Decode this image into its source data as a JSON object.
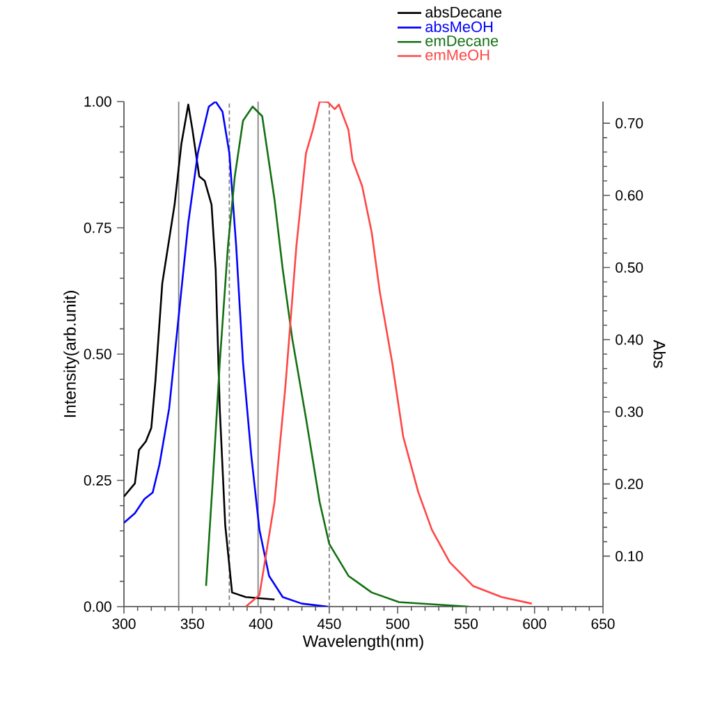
{
  "chart_data": {
    "type": "line",
    "xlabel": "Wavelength(nm)",
    "ylabel": "Intensity(arb.unit)",
    "y2label": "Abs",
    "xlim": [
      300,
      650
    ],
    "xticks": [
      300,
      350,
      400,
      450,
      500,
      550,
      600,
      650
    ],
    "ylim": [
      0,
      1.0
    ],
    "yticks": [
      {
        "value": 0,
        "label": "0.00"
      },
      {
        "value": 0.25,
        "label": "0.25"
      },
      {
        "value": 0.5,
        "label": "0.50"
      },
      {
        "value": 0.75,
        "label": "0.75"
      },
      {
        "value": 1.0,
        "label": "1.00"
      }
    ],
    "y2lim": [
      0.03,
      0.73
    ],
    "y2ticks": [
      {
        "value": 0.1,
        "label": "0.10"
      },
      {
        "value": 0.2,
        "label": "0.20"
      },
      {
        "value": 0.3,
        "label": "0.30"
      },
      {
        "value": 0.4,
        "label": "0.40"
      },
      {
        "value": 0.5,
        "label": "0.50"
      },
      {
        "value": 0.6,
        "label": "0.60"
      },
      {
        "value": 0.7,
        "label": "0.70"
      }
    ],
    "grid": false,
    "legend": "top right",
    "marker": "none",
    "line_style": "solid",
    "ref_lines": [
      {
        "axis": "x",
        "value": 340,
        "color": "#808080",
        "line_style": "solid"
      },
      {
        "axis": "x",
        "value": 398,
        "color": "#808080",
        "line_style": "solid"
      },
      {
        "axis": "x",
        "value": 377,
        "color": "#808080",
        "line_style": "dashed"
      },
      {
        "axis": "x",
        "value": 450,
        "color": "#808080",
        "line_style": "dashed"
      }
    ],
    "series": [
      {
        "name": "absDecane",
        "color": "#000000",
        "x": [
          300,
          308,
          311,
          316,
          320,
          323,
          328,
          337,
          342,
          347,
          350,
          355,
          359,
          364,
          367,
          370,
          374,
          379,
          389,
          410
        ],
        "values": [
          0.218,
          0.244,
          0.31,
          0.327,
          0.354,
          0.447,
          0.64,
          0.796,
          0.917,
          0.994,
          0.945,
          0.852,
          0.843,
          0.796,
          0.668,
          0.392,
          0.161,
          0.028,
          0.019,
          0.014
        ]
      },
      {
        "name": "absMeOH",
        "color": "#0000ff",
        "x": [
          300,
          308,
          315,
          321,
          326,
          333,
          340,
          347,
          354,
          362,
          367,
          372,
          377,
          382,
          387,
          393,
          399,
          406,
          416,
          430,
          449
        ],
        "values": [
          0.166,
          0.185,
          0.213,
          0.226,
          0.282,
          0.392,
          0.575,
          0.76,
          0.898,
          0.99,
          1.0,
          0.98,
          0.898,
          0.714,
          0.483,
          0.3,
          0.152,
          0.061,
          0.019,
          0.006,
          0.0
        ]
      },
      {
        "name": "emDecane",
        "color": "#127012",
        "x": [
          360,
          365,
          370,
          376,
          381,
          387,
          394,
          401,
          410,
          416,
          423,
          433,
          443,
          450,
          464,
          481,
          501,
          552
        ],
        "values": [
          0.041,
          0.254,
          0.483,
          0.714,
          0.852,
          0.962,
          0.99,
          0.971,
          0.806,
          0.668,
          0.53,
          0.373,
          0.207,
          0.124,
          0.061,
          0.028,
          0.009,
          0.0
        ]
      },
      {
        "name": "emMeOH",
        "color": "#ff4545",
        "x": [
          389,
          399,
          410,
          418,
          426,
          433,
          438,
          443,
          449,
          454,
          457,
          464,
          467,
          474,
          481,
          487,
          496,
          504,
          515,
          525,
          538,
          555,
          576,
          598
        ],
        "values": [
          0.0,
          0.023,
          0.207,
          0.437,
          0.714,
          0.898,
          0.944,
          1.0,
          0.999,
          0.985,
          0.994,
          0.944,
          0.884,
          0.833,
          0.741,
          0.622,
          0.483,
          0.337,
          0.227,
          0.152,
          0.088,
          0.041,
          0.019,
          0.006
        ]
      }
    ]
  }
}
